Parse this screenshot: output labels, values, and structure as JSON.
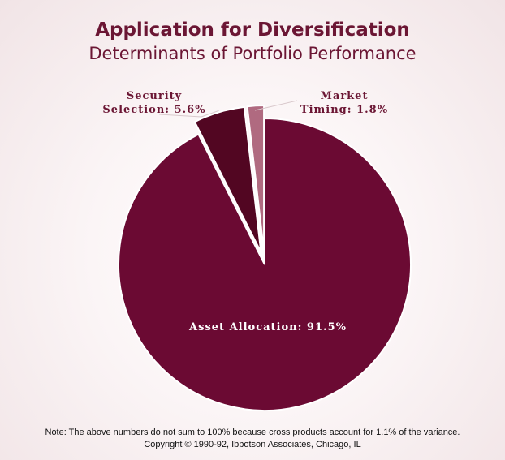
{
  "colors": {
    "title": "#6b1634",
    "asset_allocation": "#6b0a33",
    "security_selection": "#520622",
    "market_timing": "#b06a80",
    "label_on_slice": "#ffffff",
    "label_outside": "#6b1634"
  },
  "chart_data": {
    "type": "pie",
    "title": "Application for Diversification",
    "subtitle": "Determinants of Portfolio Performance",
    "slices": [
      {
        "name": "Asset Allocation",
        "value": 91.5,
        "label": "Asset Allocation: 91.5%"
      },
      {
        "name": "Security Selection",
        "value": 5.6,
        "label_lines": [
          "Security",
          "Selection: 5.6%"
        ],
        "exploded": true
      },
      {
        "name": "Market Timing",
        "value": 1.8,
        "label_lines": [
          "Market",
          "Timing: 1.8%"
        ],
        "exploded": true
      }
    ]
  },
  "footnote": {
    "line1": "Note: The above numbers do not sum to 100% because cross products account for 1.1% of the variance.",
    "line2": "Copyright © 1990-92, Ibbotson Associates, Chicago, IL"
  }
}
